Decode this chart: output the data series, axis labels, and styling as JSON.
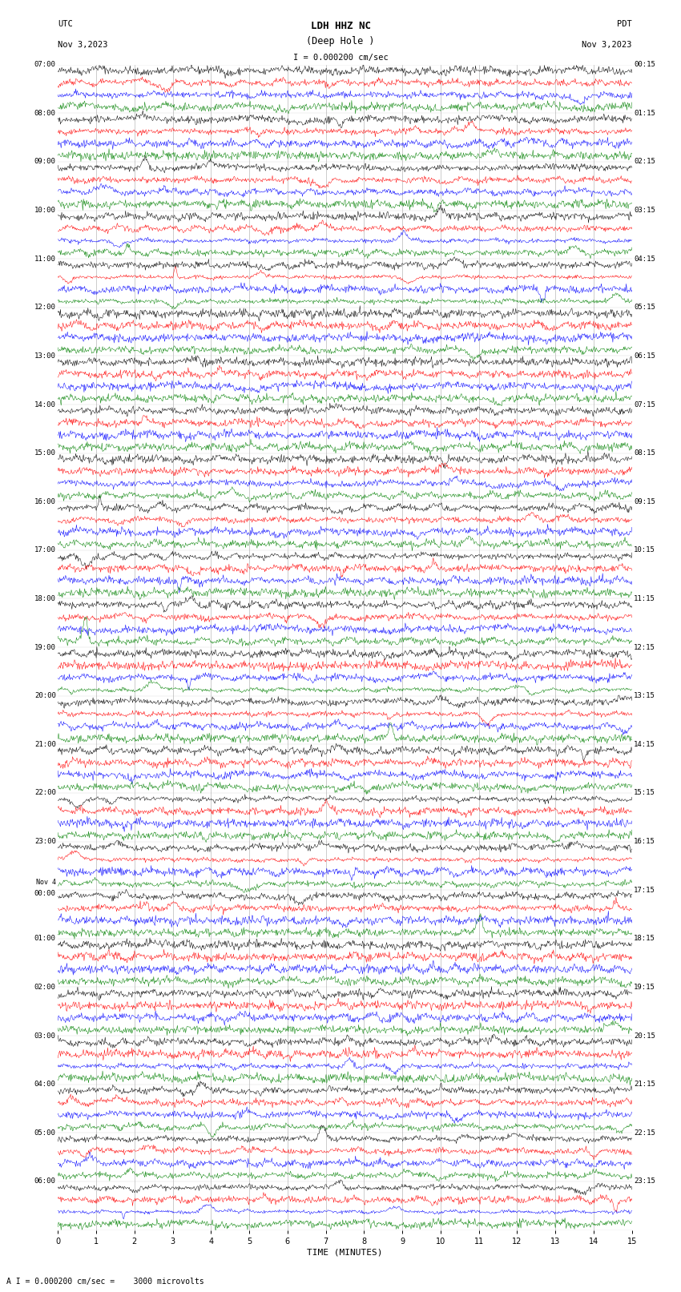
{
  "title_line1": "LDH HHZ NC",
  "title_line2": "(Deep Hole )",
  "scale_text": "I = 0.000200 cm/sec",
  "bottom_text": "A I = 0.000200 cm/sec =    3000 microvolts",
  "utc_label": "UTC",
  "date_left": "Nov 3,2023",
  "date_right": "Nov 3,2023",
  "pdt_label": "PDT",
  "xlabel": "TIME (MINUTES)",
  "left_times_utc": [
    "07:00",
    "08:00",
    "09:00",
    "10:00",
    "11:00",
    "12:00",
    "13:00",
    "14:00",
    "15:00",
    "16:00",
    "17:00",
    "18:00",
    "19:00",
    "20:00",
    "21:00",
    "22:00",
    "23:00",
    "Nov 4\n00:00",
    "01:00",
    "02:00",
    "03:00",
    "04:00",
    "05:00",
    "06:00"
  ],
  "right_times_pdt": [
    "00:15",
    "01:15",
    "02:15",
    "03:15",
    "04:15",
    "05:15",
    "06:15",
    "07:15",
    "08:15",
    "09:15",
    "10:15",
    "11:15",
    "12:15",
    "13:15",
    "14:15",
    "15:15",
    "16:15",
    "17:15",
    "18:15",
    "19:15",
    "20:15",
    "21:15",
    "22:15",
    "23:15"
  ],
  "num_hours": 24,
  "traces_per_hour": 4,
  "color_cycle": [
    "black",
    "red",
    "blue",
    "green"
  ],
  "fig_width": 8.5,
  "fig_height": 16.13,
  "dpi": 100,
  "xlim": [
    0,
    15
  ],
  "xticks": [
    0,
    1,
    2,
    3,
    4,
    5,
    6,
    7,
    8,
    9,
    10,
    11,
    12,
    13,
    14,
    15
  ],
  "bg_color": "white",
  "line_width": 0.35,
  "seed": 42,
  "noise_scales": [
    0.06,
    0.12,
    0.07,
    0.08
  ],
  "vline_color": "#999999",
  "vline_lw": 0.5
}
